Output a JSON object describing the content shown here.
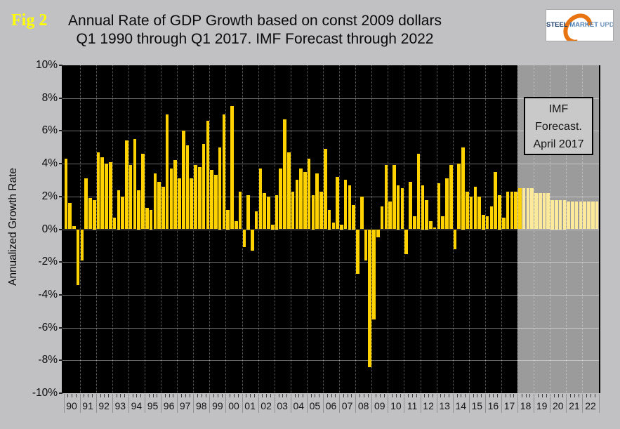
{
  "fig_label": "Fig 2",
  "title": {
    "line1": "Annual Rate of GDP Growth based on const 2009 dollars",
    "line2": "Q1 1990 through Q1 2017. IMF Forecast through 2022"
  },
  "logo": {
    "steel": "STEEL",
    "market": "MARKET",
    "update": "UPDATE"
  },
  "forecast_box": {
    "line1": "IMF",
    "line2": "Forecast.",
    "line3": "April 2017"
  },
  "colors": {
    "page_bg": "#c1c1c4",
    "plot_bg": "#000000",
    "forecast_band_bg": "#9b9b9b",
    "bar_actual": "#ffd200",
    "bar_forecast": "#fce99b",
    "fig_label": "#ffff00",
    "logo_orange": "#e87511",
    "logo_navy": "#16386b",
    "logo_blue": "#4e82b8"
  },
  "chart_data": {
    "type": "bar",
    "title": "Annual Rate of GDP Growth based on const 2009 dollars — Q1 1990 through Q1 2017. IMF Forecast through 2022",
    "xlabel": "",
    "ylabel": "Annualized Growth Rate",
    "ylim": [
      -10,
      10
    ],
    "ytick_step": 2,
    "ytick_suffix": "%",
    "grid": true,
    "quarters_per_year": 4,
    "x_year_labels": [
      "90",
      "91",
      "92",
      "93",
      "94",
      "95",
      "96",
      "97",
      "98",
      "99",
      "00",
      "01",
      "02",
      "03",
      "04",
      "05",
      "06",
      "07",
      "08",
      "09",
      "10",
      "11",
      "12",
      "13",
      "14",
      "15",
      "16",
      "17",
      "18",
      "19",
      "20",
      "21",
      "22"
    ],
    "forecast_start_index": 109,
    "pale_bar_start_index": 113,
    "values": [
      4.3,
      1.6,
      0.2,
      -3.4,
      -1.9,
      3.1,
      1.9,
      1.8,
      4.7,
      4.4,
      4.0,
      4.1,
      0.7,
      2.4,
      2.0,
      5.4,
      3.9,
      5.5,
      2.4,
      4.6,
      1.3,
      1.2,
      3.4,
      2.9,
      2.6,
      7.0,
      3.7,
      4.2,
      3.1,
      6.0,
      5.1,
      3.1,
      3.9,
      3.8,
      5.2,
      6.6,
      3.6,
      3.3,
      5.0,
      7.0,
      1.2,
      7.5,
      0.5,
      2.3,
      -1.1,
      2.1,
      -1.3,
      1.1,
      3.7,
      2.2,
      2.0,
      0.3,
      2.1,
      3.7,
      6.7,
      4.7,
      2.3,
      3.0,
      3.7,
      3.5,
      4.3,
      2.1,
      3.4,
      2.3,
      4.9,
      1.2,
      0.4,
      3.2,
      0.3,
      3.0,
      2.7,
      1.5,
      -2.7,
      2.0,
      -1.9,
      -8.4,
      -5.5,
      -0.5,
      1.4,
      3.9,
      1.7,
      3.9,
      2.7,
      2.5,
      -1.5,
      2.9,
      0.8,
      4.6,
      2.7,
      1.8,
      0.5,
      0.1,
      2.8,
      0.8,
      3.1,
      3.9,
      -1.2,
      4.0,
      5.0,
      2.3,
      2.0,
      2.6,
      2.0,
      0.9,
      0.8,
      1.4,
      3.5,
      2.1,
      0.7,
      2.3,
      2.3,
      2.3,
      2.5,
      2.5,
      2.5,
      2.5,
      2.2,
      2.2,
      2.2,
      2.2,
      1.8,
      1.8,
      1.8,
      1.8,
      1.7,
      1.7,
      1.7,
      1.7,
      1.7,
      1.7,
      1.7,
      1.7
    ]
  }
}
